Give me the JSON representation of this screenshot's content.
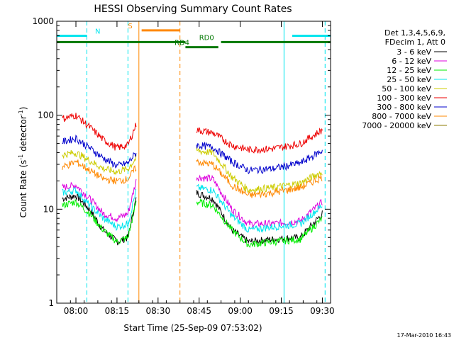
{
  "chart_data": {
    "type": "line",
    "title": "HESSI Observing Summary Count Rates",
    "xlabel": "Start Time (25-Sep-09 07:53:02)",
    "ylabel_main": "Count Rate (s",
    "ylabel_sup1": "-1",
    "ylabel_mid": " detector",
    "ylabel_sup2": "-1",
    "ylabel_end": ")",
    "y_scale": "log",
    "ylim": [
      1,
      1000
    ],
    "xlim_minutes_after_0800": [
      -7,
      93
    ],
    "grid": false,
    "legend_placement": "right",
    "x_ticks": [
      {
        "label": "08:00",
        "t": 0
      },
      {
        "label": "08:15",
        "t": 15
      },
      {
        "label": "08:30",
        "t": 30
      },
      {
        "label": "08:45",
        "t": 45
      },
      {
        "label": "09:00",
        "t": 60
      },
      {
        "label": "09:15",
        "t": 75
      },
      {
        "label": "09:30",
        "t": 90
      }
    ],
    "y_ticks": [
      {
        "label": "1",
        "v": 1
      },
      {
        "label": "10",
        "v": 10
      },
      {
        "label": "100",
        "v": 100
      },
      {
        "label": "1000",
        "v": 1000
      }
    ],
    "legend_header": [
      "Det 1,3,4,5,6,9,",
      "FDecim 1, Att 0"
    ],
    "series": [
      {
        "name": "3 - 6 keV",
        "color": "#000000",
        "before": [
          13,
          14,
          10,
          6,
          4.5,
          5,
          13
        ],
        "after": [
          15,
          13,
          6,
          4.5,
          4.8,
          5,
          9
        ]
      },
      {
        "name": "6 - 12 keV",
        "color": "#dd00dd",
        "before": [
          17,
          18,
          13,
          9,
          8,
          9,
          20
        ],
        "after": [
          22,
          21,
          10,
          7,
          7,
          7.5,
          12
        ]
      },
      {
        "name": "12 - 25 keV",
        "color": "#00ee00",
        "before": [
          11,
          12,
          9,
          6,
          4.5,
          5,
          12
        ],
        "after": [
          12,
          11,
          6,
          4.2,
          4.5,
          4.8,
          8
        ]
      },
      {
        "name": "25 - 50 keV",
        "color": "#00e5ee",
        "before": [
          15,
          16,
          11,
          8,
          6.5,
          7,
          16
        ],
        "after": [
          17,
          16,
          8.5,
          6,
          6.5,
          7,
          11
        ]
      },
      {
        "name": "50 - 100 keV",
        "color": "#cccc00",
        "before": [
          38,
          40,
          33,
          27,
          25,
          27,
          35
        ],
        "after": [
          42,
          40,
          22,
          16,
          17,
          19,
          25
        ]
      },
      {
        "name": "100 - 300 keV",
        "color": "#ee0000",
        "before": [
          92,
          100,
          75,
          55,
          45,
          48,
          80
        ],
        "after": [
          70,
          65,
          48,
          43,
          44,
          50,
          70
        ]
      },
      {
        "name": "300 - 800 keV",
        "color": "#0000cc",
        "before": [
          52,
          57,
          45,
          35,
          29,
          31,
          40
        ],
        "after": [
          48,
          46,
          32,
          26,
          27,
          31,
          42
        ]
      },
      {
        "name": "800 - 7000 keV",
        "color": "#ff8800",
        "before": [
          28,
          32,
          26,
          21,
          20,
          21,
          28
        ],
        "after": [
          32,
          30,
          18,
          14,
          15,
          17,
          22
        ]
      },
      {
        "name": "7000 - 20000 keV",
        "color": "#8b7a00",
        "before": [],
        "after": []
      }
    ],
    "series_times": {
      "before": [
        -5,
        0,
        5,
        10,
        15,
        19,
        22
      ],
      "after": [
        44,
        50,
        57,
        63,
        72,
        82,
        90
      ]
    },
    "flag_bars": [
      {
        "label": "N",
        "color": "#00e5ee",
        "y": 700,
        "segments": [
          [
            -7,
            4
          ]
        ],
        "label_at": 7
      },
      {
        "label": "",
        "color": "#00e5ee",
        "y": 700,
        "segments": [
          [
            79,
            93
          ]
        ],
        "label_at": null
      },
      {
        "label": "S",
        "color": "#ff8800",
        "y": 800,
        "segments": [
          [
            24,
            38
          ]
        ],
        "label_at": 19
      },
      {
        "label": "RD0",
        "color": "#007700",
        "y": 600,
        "segments": [
          [
            -7,
            40
          ],
          [
            53,
            93
          ]
        ],
        "label_at": 45
      },
      {
        "label": "RD4",
        "color": "#007700",
        "y": 530,
        "segments": [
          [
            40,
            52
          ]
        ],
        "label_at": 36
      }
    ],
    "vertical_markers": [
      {
        "t": 4,
        "color": "#00e5ee",
        "dashed": true
      },
      {
        "t": 19,
        "color": "#00e5ee",
        "dashed": true
      },
      {
        "t": 23,
        "color": "#ff8800",
        "dashed": false
      },
      {
        "t": 38,
        "color": "#ff8800",
        "dashed": true
      },
      {
        "t": 76,
        "color": "#00e5ee",
        "dashed": false
      },
      {
        "t": 91,
        "color": "#00e5ee",
        "dashed": true
      }
    ],
    "footer_date": "17-Mar-2010 16:43"
  }
}
